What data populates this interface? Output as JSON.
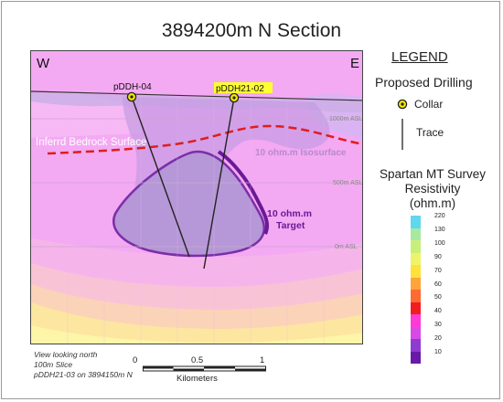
{
  "title": "3894200m N Section",
  "section": {
    "west_label": "W",
    "east_label": "E",
    "drill_holes": [
      {
        "label": "pDDH-04",
        "highlighted": false
      },
      {
        "label": "pDDH21-02",
        "highlighted": true
      }
    ],
    "elevation_labels": [
      "1000m ASL",
      "500m ASL",
      "0m ASL"
    ],
    "bedrock_label": "Inferrd Bedrock Surface",
    "isosurface_label": "10 ohm.m Isosurface",
    "target_label_line1": "10 ohm.m",
    "target_label_line2": "Target"
  },
  "legend": {
    "title": "LEGEND",
    "proposed_drilling": "Proposed Drilling",
    "collar": "Collar",
    "trace": "Trace",
    "survey_title_line1": "Spartan MT Survey",
    "survey_title_line2": "Resistivity",
    "survey_title_line3": "(ohm.m)",
    "scale_values": [
      "220",
      "130",
      "100",
      "90",
      "70",
      "60",
      "50",
      "40",
      "30",
      "20",
      "10"
    ],
    "scale_colors": [
      "#5fd8ee",
      "#a7e9a0",
      "#c9ee7a",
      "#eef46a",
      "#ffe13a",
      "#ffa43a",
      "#ff6a32",
      "#f21e1e",
      "#ff3ad6",
      "#d84ae6",
      "#8f3bd0",
      "#6a1aa8"
    ]
  },
  "notes": {
    "line1": "View looking north",
    "line2": "100m Slice",
    "line3": "pDDH21-03 on 3894150m N"
  },
  "scalebar": {
    "labels": [
      "0",
      "0.5",
      "1"
    ],
    "unit": "Kilometers"
  },
  "colors": {
    "background_pink": "#f2a5f2",
    "deep_band_pink": "#f7b2ee",
    "target_fill": "#b99ad8",
    "target_outline": "#7b2fa8",
    "bedrock_line": "#e01d1d",
    "collar_fill": "#f3e600",
    "highlight": "#ffff33"
  }
}
